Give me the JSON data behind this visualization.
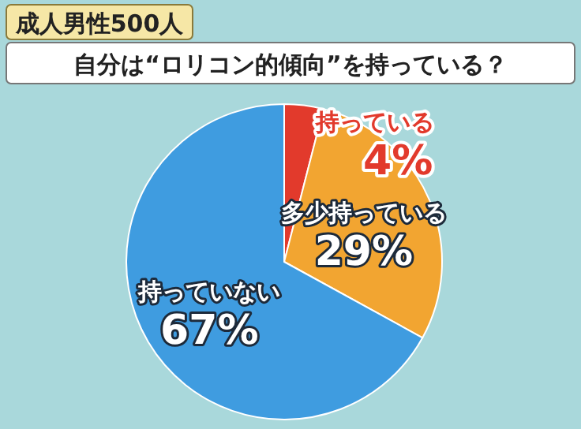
{
  "chart_data": {
    "type": "pie",
    "title": "成人男性500人",
    "subtitle": "自分は“ロリコン的傾向”を持っている？",
    "categories": [
      "持っている",
      "多少持っている",
      "持っていない"
    ],
    "values": [
      4,
      29,
      67
    ],
    "value_labels": [
      "4%",
      "29%",
      "67%"
    ],
    "colors": [
      "#e23a2c",
      "#f2a531",
      "#3f9ce0"
    ]
  }
}
